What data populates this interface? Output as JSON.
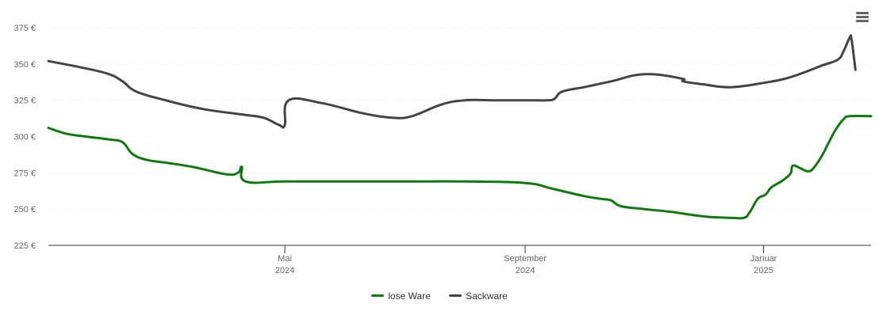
{
  "chart_data": {
    "type": "line",
    "title": "",
    "xlabel": "",
    "ylabel": "",
    "y_ticks": [
      "225 €",
      "250 €",
      "275 €",
      "300 €",
      "325 €",
      "350 €",
      "375 €"
    ],
    "ylim": [
      225,
      380
    ],
    "x_range": [
      "2024-01-01",
      "2025-02-25"
    ],
    "x_ticks": [
      {
        "date": "2024-05-01",
        "month": "Mai",
        "year": "2024"
      },
      {
        "date": "2024-09-01",
        "month": "September",
        "year": "2024"
      },
      {
        "date": "2025-01-01",
        "month": "Januar",
        "year": "2025"
      }
    ],
    "grid": true,
    "legend_position": "bottom-center",
    "series": [
      {
        "name": "lose Ware",
        "color": "#0e7a0d",
        "points": [
          [
            "2024-01-01",
            306
          ],
          [
            "2024-01-10",
            302
          ],
          [
            "2024-01-20",
            300
          ],
          [
            "2024-02-01",
            298
          ],
          [
            "2024-02-08",
            296
          ],
          [
            "2024-02-13",
            288
          ],
          [
            "2024-02-20",
            284
          ],
          [
            "2024-03-01",
            282
          ],
          [
            "2024-03-15",
            279
          ],
          [
            "2024-04-01",
            274
          ],
          [
            "2024-04-07",
            275
          ],
          [
            "2024-04-09",
            279
          ],
          [
            "2024-04-11",
            269
          ],
          [
            "2024-05-01",
            269
          ],
          [
            "2024-06-01",
            269
          ],
          [
            "2024-07-01",
            269
          ],
          [
            "2024-08-01",
            269
          ],
          [
            "2024-09-01",
            268
          ],
          [
            "2024-09-15",
            264
          ],
          [
            "2024-10-01",
            259
          ],
          [
            "2024-10-10",
            257
          ],
          [
            "2024-10-15",
            256
          ],
          [
            "2024-10-20",
            252
          ],
          [
            "2024-11-01",
            250
          ],
          [
            "2024-11-15",
            248
          ],
          [
            "2024-12-01",
            245
          ],
          [
            "2024-12-15",
            244
          ],
          [
            "2024-12-22",
            244
          ],
          [
            "2024-12-25",
            248
          ],
          [
            "2024-12-29",
            257
          ],
          [
            "2025-01-02",
            260
          ],
          [
            "2025-01-05",
            265
          ],
          [
            "2025-01-10",
            269
          ],
          [
            "2025-01-13",
            272
          ],
          [
            "2025-01-15",
            275
          ],
          [
            "2025-01-16",
            280
          ],
          [
            "2025-01-20",
            278
          ],
          [
            "2025-01-24",
            276
          ],
          [
            "2025-01-27",
            279
          ],
          [
            "2025-01-31",
            287
          ],
          [
            "2025-02-03",
            295
          ],
          [
            "2025-02-07",
            305
          ],
          [
            "2025-02-11",
            312
          ],
          [
            "2025-02-14",
            314
          ],
          [
            "2025-02-25",
            314
          ]
        ]
      },
      {
        "name": "Sackware",
        "color": "#434348",
        "points": [
          [
            "2024-01-01",
            352
          ],
          [
            "2024-01-20",
            347
          ],
          [
            "2024-02-01",
            343
          ],
          [
            "2024-02-08",
            338
          ],
          [
            "2024-02-15",
            331
          ],
          [
            "2024-03-01",
            325
          ],
          [
            "2024-03-20",
            319
          ],
          [
            "2024-04-10",
            315
          ],
          [
            "2024-04-20",
            313
          ],
          [
            "2024-04-28",
            308
          ],
          [
            "2024-05-01",
            308
          ],
          [
            "2024-05-03",
            325
          ],
          [
            "2024-05-20",
            323
          ],
          [
            "2024-06-10",
            316
          ],
          [
            "2024-06-25",
            313
          ],
          [
            "2024-07-05",
            314
          ],
          [
            "2024-07-20",
            322
          ],
          [
            "2024-08-01",
            325
          ],
          [
            "2024-08-15",
            325
          ],
          [
            "2024-09-01",
            325
          ],
          [
            "2024-09-12",
            325
          ],
          [
            "2024-09-16",
            326
          ],
          [
            "2024-09-20",
            331
          ],
          [
            "2024-10-01",
            334
          ],
          [
            "2024-10-15",
            338
          ],
          [
            "2024-11-01",
            343
          ],
          [
            "2024-11-20",
            340
          ],
          [
            "2024-11-21",
            338
          ],
          [
            "2024-12-01",
            336
          ],
          [
            "2024-12-15",
            334
          ],
          [
            "2025-01-01",
            337
          ],
          [
            "2025-01-15",
            341
          ],
          [
            "2025-01-31",
            349
          ],
          [
            "2025-02-08",
            353
          ],
          [
            "2025-02-11",
            359
          ],
          [
            "2025-02-14",
            368
          ],
          [
            "2025-02-15",
            367
          ],
          [
            "2025-02-17",
            346
          ]
        ]
      }
    ]
  },
  "ui": {
    "menu_icon": "hamburger-menu-icon",
    "axis_color": "#333333",
    "grid_color": "#e6e6e6",
    "text_color": "#666666"
  }
}
